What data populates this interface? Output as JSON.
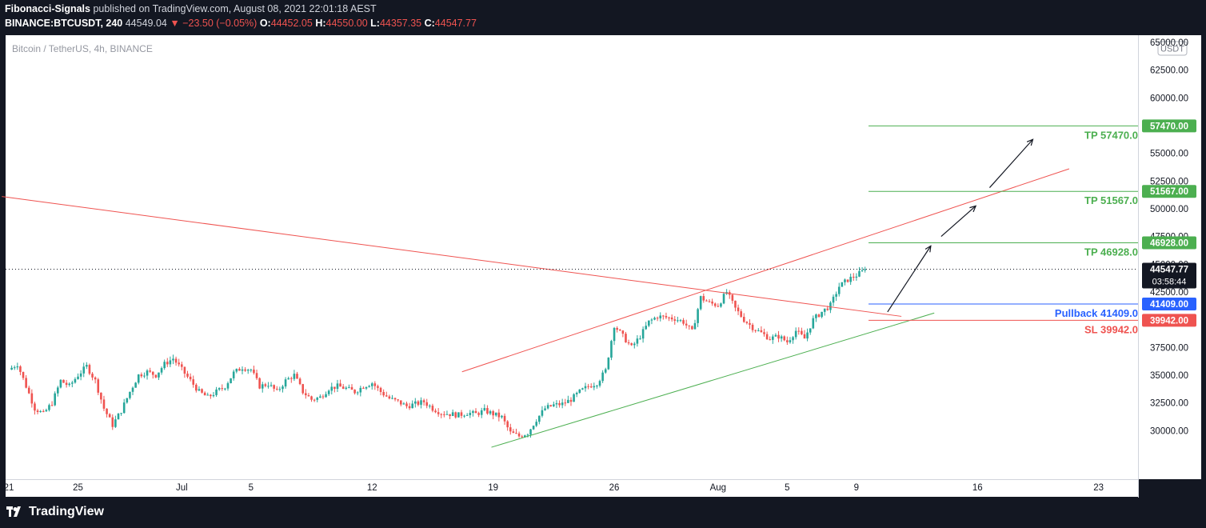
{
  "header": {
    "publisher": "Fibonacci-Signals",
    "published_text": "published on TradingView.com, August 08, 2021 22:01:18 AEST",
    "symbol": "BINANCE:BTCUSDT, 240",
    "last": "44549.04",
    "change": "▼ −23.50 (−0.05%)",
    "o_label": "O:",
    "o_value": "44452.05",
    "h_label": "H:",
    "h_value": "44550.00",
    "l_label": "L:",
    "l_value": "44357.35",
    "c_label": "C:",
    "c_value": "44547.77"
  },
  "footer": {
    "brand": "TradingView",
    "logo_icon": "tradingview-logo-icon"
  },
  "chart_data": {
    "type": "candlestick",
    "instrument": "Bitcoin / TetherUS, 4h, BINANCE",
    "currency": "USDT",
    "ylim": [
      28000,
      65500
    ],
    "y_ticks": [
      65000,
      62500,
      60000,
      57500,
      55000,
      52500,
      50000,
      47500,
      45000,
      42500,
      37500,
      35000,
      32500,
      30000
    ],
    "x_ticks": [
      {
        "label": "21",
        "day": 0
      },
      {
        "label": "25",
        "day": 4
      },
      {
        "label": "Jul",
        "day": 10
      },
      {
        "label": "5",
        "day": 14
      },
      {
        "label": "12",
        "day": 21
      },
      {
        "label": "19",
        "day": 28
      },
      {
        "label": "26",
        "day": 35
      },
      {
        "label": "Aug",
        "day": 41
      },
      {
        "label": "5",
        "day": 45
      },
      {
        "label": "9",
        "day": 49
      },
      {
        "label": "16",
        "day": 56
      },
      {
        "label": "23",
        "day": 63
      }
    ],
    "day_origin": "Jun 21",
    "current": {
      "price": 44547.77,
      "label": "44547.77",
      "countdown": "03:58:44"
    },
    "levels": [
      {
        "name": "TP 57470.0",
        "price": 57470,
        "axis_label": "57470.00",
        "color": "#4caf50"
      },
      {
        "name": "TP 51567.0",
        "price": 51567,
        "axis_label": "51567.00",
        "color": "#4caf50"
      },
      {
        "name": "TP 46928.0",
        "price": 46928,
        "axis_label": "46928.00",
        "color": "#4caf50"
      },
      {
        "name": "Pullback 41409.0",
        "price": 41409,
        "axis_label": "41409.00",
        "color": "#2962ff"
      },
      {
        "name": "SL 39942.0",
        "price": 39942,
        "axis_label": "39942.00",
        "color": "#ef5350"
      }
    ],
    "trendlines": [
      {
        "name": "descending-resistance",
        "color": "#ef5350",
        "points": [
          [
            -0.4,
            51100
          ],
          [
            51.6,
            40300
          ]
        ]
      },
      {
        "name": "channel-top",
        "color": "#ef5350",
        "points": [
          [
            26.2,
            35300
          ],
          [
            61.3,
            53600
          ]
        ]
      },
      {
        "name": "channel-bottom",
        "color": "#4caf50",
        "points": [
          [
            27.9,
            28500
          ],
          [
            53.5,
            40600
          ]
        ]
      }
    ],
    "arrows": [
      {
        "from": [
          50.8,
          40700
        ],
        "to": [
          53.3,
          46650
        ]
      },
      {
        "from": [
          53.9,
          47500
        ],
        "to": [
          55.9,
          50250
        ]
      },
      {
        "from": [
          56.7,
          51900
        ],
        "to": [
          59.2,
          56250
        ]
      }
    ],
    "path": [
      [
        0,
        35500
      ],
      [
        0.5,
        36000
      ],
      [
        1,
        34000
      ],
      [
        1.5,
        32000
      ],
      [
        2,
        31500
      ],
      [
        2.5,
        32500
      ],
      [
        3,
        34500
      ],
      [
        3.5,
        34000
      ],
      [
        4,
        35000
      ],
      [
        4.5,
        35800
      ],
      [
        5,
        34500
      ],
      [
        5.5,
        32000
      ],
      [
        6,
        30500
      ],
      [
        6.5,
        31800
      ],
      [
        7,
        33500
      ],
      [
        7.5,
        35000
      ],
      [
        8,
        35300
      ],
      [
        8.5,
        35000
      ],
      [
        9,
        36000
      ],
      [
        9.5,
        36500
      ],
      [
        10,
        35500
      ],
      [
        10.5,
        34500
      ],
      [
        11,
        33500
      ],
      [
        11.5,
        33000
      ],
      [
        12,
        33500
      ],
      [
        12.5,
        34000
      ],
      [
        13,
        35200
      ],
      [
        13.5,
        35700
      ],
      [
        14,
        35500
      ],
      [
        14.5,
        34000
      ],
      [
        15,
        34200
      ],
      [
        15.5,
        33500
      ],
      [
        16,
        34500
      ],
      [
        16.5,
        35000
      ],
      [
        17,
        33500
      ],
      [
        17.5,
        32800
      ],
      [
        18,
        33000
      ],
      [
        18.5,
        33800
      ],
      [
        19,
        34000
      ],
      [
        19.5,
        33800
      ],
      [
        20,
        33500
      ],
      [
        20.5,
        34000
      ],
      [
        21,
        34300
      ],
      [
        21.5,
        33500
      ],
      [
        22,
        32900
      ],
      [
        22.5,
        32600
      ],
      [
        23,
        32200
      ],
      [
        23.5,
        32400
      ],
      [
        24,
        32600
      ],
      [
        24.5,
        32000
      ],
      [
        25,
        31600
      ],
      [
        25.5,
        31500
      ],
      [
        26,
        31400
      ],
      [
        26.5,
        31600
      ],
      [
        27,
        31500
      ],
      [
        27.5,
        31800
      ],
      [
        28,
        31500
      ],
      [
        28.5,
        31200
      ],
      [
        29,
        29800
      ],
      [
        29.5,
        29500
      ],
      [
        30,
        29800
      ],
      [
        30.5,
        31000
      ],
      [
        31,
        32000
      ],
      [
        31.5,
        32300
      ],
      [
        32,
        32400
      ],
      [
        32.5,
        32800
      ],
      [
        33,
        33500
      ],
      [
        33.5,
        34000
      ],
      [
        34,
        34300
      ],
      [
        34.5,
        35400
      ],
      [
        35,
        39500
      ],
      [
        35.5,
        38500
      ],
      [
        36,
        37500
      ],
      [
        36.5,
        38500
      ],
      [
        37,
        39800
      ],
      [
        37.5,
        40300
      ],
      [
        38,
        40200
      ],
      [
        38.5,
        40100
      ],
      [
        39,
        39800
      ],
      [
        39.5,
        38900
      ],
      [
        40,
        42000
      ],
      [
        40.5,
        41500
      ],
      [
        41,
        41300
      ],
      [
        41.5,
        42500
      ],
      [
        42,
        41000
      ],
      [
        42.5,
        40000
      ],
      [
        43,
        39300
      ],
      [
        43.5,
        38800
      ],
      [
        44,
        38300
      ],
      [
        44.5,
        38500
      ],
      [
        45,
        38000
      ],
      [
        45.5,
        39000
      ],
      [
        46,
        38300
      ],
      [
        46.5,
        40000
      ],
      [
        47,
        40700
      ],
      [
        47.5,
        41300
      ],
      [
        48,
        43000
      ],
      [
        48.5,
        43600
      ],
      [
        49,
        44000
      ],
      [
        49.3,
        44300
      ],
      [
        49.6,
        44550
      ]
    ]
  }
}
